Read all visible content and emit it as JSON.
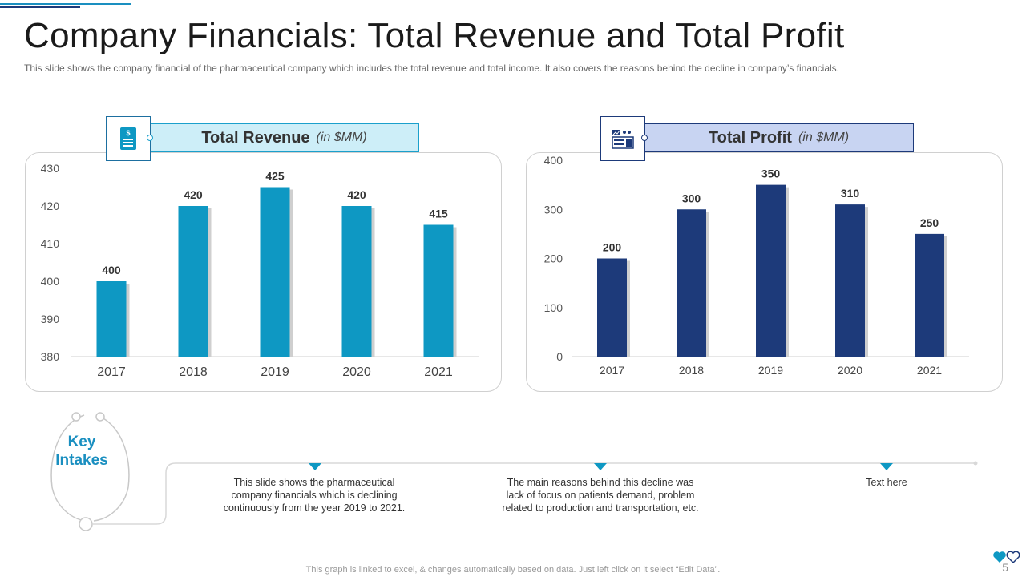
{
  "title": "Company Financials: Total Revenue and Total Profit",
  "subtitle": "This slide shows the company financial of the pharmaceutical company which includes the total revenue  and total income. It also covers the reasons behind the decline in company’s financials.",
  "colors": {
    "revenue_bar": "#0e98c3",
    "profit_bar": "#1d3a7a",
    "revenue_header_bg": "#cdeef8",
    "profit_header_bg": "#c8d4f2"
  },
  "revenue_header": {
    "label": "Total Revenue",
    "unit": "(in $MM)"
  },
  "profit_header": {
    "label": "Total Profit",
    "unit": "(in $MM)"
  },
  "chart_data": [
    {
      "type": "bar",
      "title": "Total Revenue (in $MM)",
      "categories": [
        "2017",
        "2018",
        "2019",
        "2020",
        "2021"
      ],
      "values": [
        400,
        420,
        425,
        420,
        415
      ],
      "ylim": [
        380,
        430
      ],
      "yticks": [
        "430",
        "420",
        "410",
        "400",
        "390",
        "380"
      ],
      "xlabel": "",
      "ylabel": ""
    },
    {
      "type": "bar",
      "title": "Total Profit (in $MM)",
      "categories": [
        "2017",
        "2018",
        "2019",
        "2020",
        "2021"
      ],
      "values": [
        200,
        300,
        350,
        310,
        250
      ],
      "ylim": [
        0,
        400
      ],
      "yticks": [
        "400",
        "300",
        "200",
        "100",
        "0"
      ],
      "xlabel": "",
      "ylabel": ""
    }
  ],
  "key_intakes": {
    "title_line1": "Key",
    "title_line2": "Intakes"
  },
  "notes": [
    {
      "lines": [
        "This slide shows the pharmaceutical",
        "company financials which is declining",
        "continuously from the year 2019 to 2021."
      ]
    },
    {
      "lines": [
        "The main reasons behind this decline was",
        "lack of focus on patients demand, problem",
        "related to production and transportation, etc."
      ]
    },
    {
      "lines": [
        "Text here"
      ]
    }
  ],
  "footer": "This graph is linked to excel, & changes automatically based on data. Just left click on it select “Edit Data”.",
  "page_number": "5"
}
